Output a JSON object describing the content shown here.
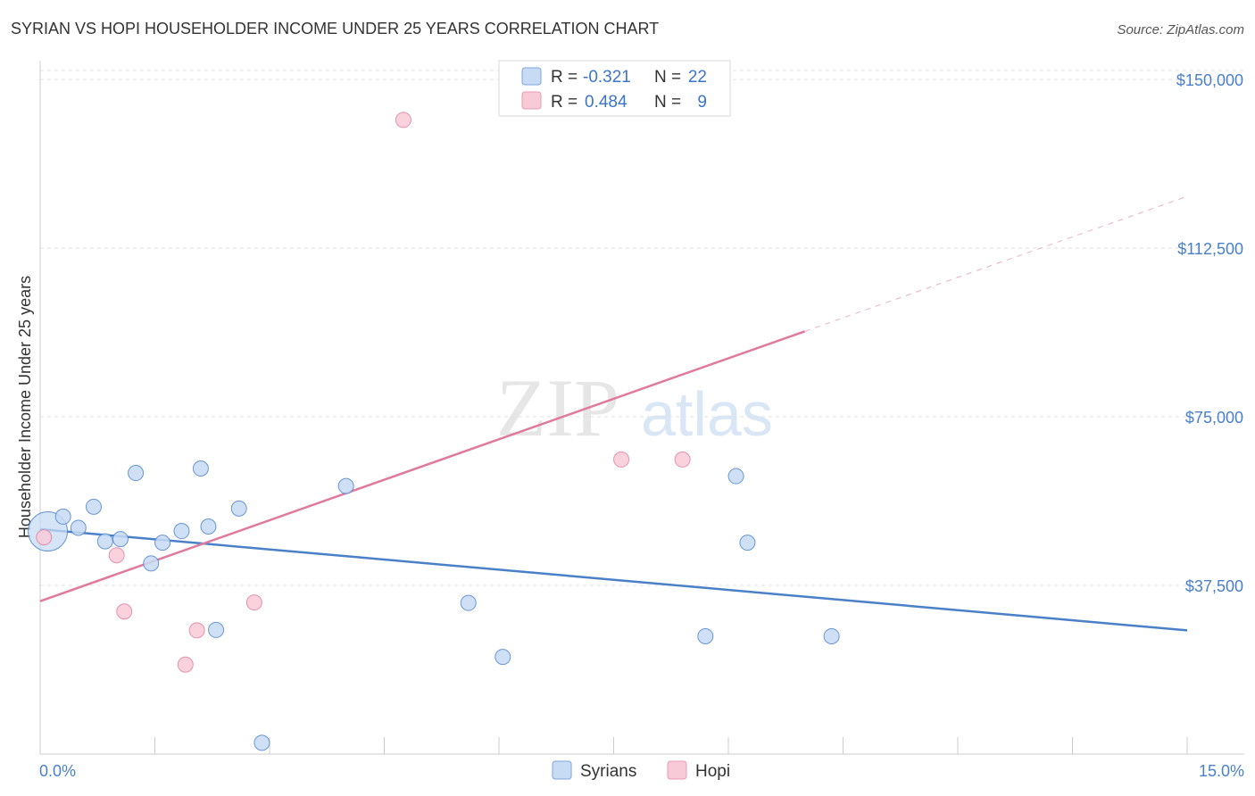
{
  "chart_data": {
    "type": "scatter",
    "title": "SYRIAN VS HOPI HOUSEHOLDER INCOME UNDER 25 YEARS CORRELATION CHART",
    "source": "Source: ZipAtlas.com",
    "watermark": {
      "zip": "ZIP",
      "atlas": "atlas"
    },
    "xlabel": "",
    "ylabel": "Householder Income Under 25 years",
    "xlim": [
      0,
      15
    ],
    "ylim": [
      0,
      152000
    ],
    "x_tick_labels": {
      "min": "0.0%",
      "max": "15.0%"
    },
    "y_ticks": [
      {
        "value": 37500,
        "label": "$37,500"
      },
      {
        "value": 75000,
        "label": "$75,000"
      },
      {
        "value": 112500,
        "label": "$112,500"
      },
      {
        "value": 150000,
        "label": "$150,000"
      }
    ],
    "grid": true,
    "legend": {
      "position": "top-center",
      "entries": [
        {
          "name": "Syrians",
          "r_label": "R =",
          "r": "-0.321",
          "n_label": "N =",
          "n": "22"
        },
        {
          "name": "Hopi",
          "r_label": "R =",
          "r": "0.484",
          "n_label": "N =",
          "n": "9"
        }
      ]
    },
    "series": [
      {
        "name": "Syrians",
        "color": "#4a80c8",
        "fill": "#c7dbf4",
        "points": [
          [
            0.1,
            49500
          ],
          [
            0.3,
            52800
          ],
          [
            0.5,
            50300
          ],
          [
            0.7,
            55000
          ],
          [
            0.85,
            47300
          ],
          [
            1.05,
            47800
          ],
          [
            1.25,
            62500
          ],
          [
            1.45,
            42400
          ],
          [
            1.6,
            47000
          ],
          [
            1.85,
            49600
          ],
          [
            2.1,
            63500
          ],
          [
            2.2,
            50600
          ],
          [
            2.3,
            27600
          ],
          [
            2.6,
            54600
          ],
          [
            2.9,
            2500
          ],
          [
            4.0,
            59600
          ],
          [
            5.6,
            33600
          ],
          [
            6.05,
            21600
          ],
          [
            8.7,
            26200
          ],
          [
            9.1,
            61800
          ],
          [
            9.25,
            47000
          ],
          [
            10.35,
            26200
          ]
        ],
        "trend": {
          "x0": 0,
          "y0": 50000,
          "x1": 15,
          "y1": 27500
        }
      },
      {
        "name": "Hopi",
        "color": "#e07a9c",
        "fill": "#f8cad8",
        "points": [
          [
            0.05,
            48200
          ],
          [
            1.0,
            44200
          ],
          [
            1.1,
            31700
          ],
          [
            1.9,
            19900
          ],
          [
            2.05,
            27500
          ],
          [
            2.8,
            33700
          ],
          [
            4.75,
            141000
          ],
          [
            7.6,
            65500
          ],
          [
            8.4,
            65500
          ]
        ],
        "trend": {
          "x0": 0,
          "y0": 34000,
          "x1": 10,
          "y1": 94000
        },
        "trend_extension": {
          "x0": 10,
          "y0": 94000,
          "x1": 15,
          "y1": 124000
        }
      }
    ]
  }
}
